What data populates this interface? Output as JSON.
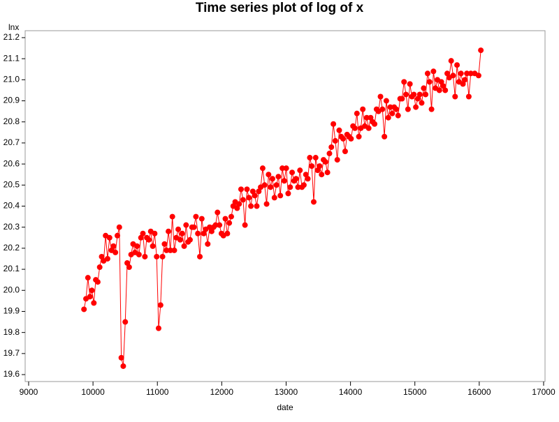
{
  "chart_data": {
    "type": "line",
    "title": "Time series plot of log  of x",
    "x_label": "date",
    "y_label": "lnx",
    "x": [
      9860,
      9891,
      9921,
      9952,
      9982,
      10013,
      10043,
      10074,
      10104,
      10135,
      10165,
      10196,
      10226,
      10257,
      10287,
      10318,
      10348,
      10379,
      10409,
      10440,
      10470,
      10501,
      10531,
      10562,
      10592,
      10623,
      10653,
      10684,
      10714,
      10745,
      10775,
      10806,
      10836,
      10867,
      10897,
      10928,
      10958,
      10989,
      11019,
      11050,
      11080,
      11111,
      11141,
      11172,
      11202,
      11233,
      11263,
      11294,
      11324,
      11355,
      11385,
      11416,
      11446,
      11477,
      11507,
      11538,
      11568,
      11599,
      11629,
      11660,
      11690,
      11721,
      11751,
      11782,
      11812,
      11843,
      11873,
      11904,
      11934,
      11965,
      11995,
      12026,
      12056,
      12087,
      12117,
      12148,
      12178,
      12209,
      12239,
      12270,
      12300,
      12331,
      12361,
      12392,
      12422,
      12453,
      12483,
      12514,
      12544,
      12575,
      12605,
      12636,
      12666,
      12697,
      12727,
      12758,
      12788,
      12819,
      12849,
      12880,
      12910,
      12941,
      12971,
      13002,
      13032,
      13063,
      13093,
      13124,
      13154,
      13185,
      13215,
      13246,
      13276,
      13307,
      13337,
      13368,
      13398,
      13429,
      13459,
      13490,
      13520,
      13551,
      13581,
      13612,
      13642,
      13673,
      13703,
      13734,
      13764,
      13795,
      13825,
      13856,
      13886,
      13917,
      13947,
      13978,
      14008,
      14039,
      14069,
      14100,
      14130,
      14161,
      14191,
      14222,
      14252,
      14283,
      14313,
      14344,
      14374,
      14405,
      14435,
      14466,
      14496,
      14527,
      14557,
      14588,
      14618,
      14649,
      14679,
      14710,
      14740,
      14771,
      14801,
      14832,
      14862,
      14893,
      14923,
      14954,
      14984,
      15015,
      15045,
      15076,
      15106,
      15137,
      15167,
      15198,
      15228,
      15259,
      15289,
      15320,
      15350,
      15381,
      15411,
      15442,
      15472,
      15503,
      15533,
      15564,
      15594,
      15625,
      15655,
      15686,
      15716,
      15747,
      15777,
      15808,
      15838,
      15869,
      15930,
      15990,
      16025
    ],
    "values": [
      19.91,
      19.96,
      20.06,
      19.97,
      20.0,
      19.94,
      20.05,
      20.04,
      20.11,
      20.16,
      20.14,
      20.26,
      20.15,
      20.25,
      20.19,
      20.21,
      20.18,
      20.26,
      20.3,
      19.68,
      19.64,
      19.85,
      20.13,
      20.11,
      20.17,
      20.22,
      20.18,
      20.21,
      20.17,
      20.25,
      20.27,
      20.16,
      20.25,
      20.24,
      20.28,
      20.21,
      20.27,
      20.16,
      19.82,
      19.93,
      20.16,
      20.22,
      20.19,
      20.28,
      20.19,
      20.35,
      20.19,
      20.25,
      20.29,
      20.24,
      20.27,
      20.21,
      20.31,
      20.23,
      20.24,
      20.3,
      20.3,
      20.35,
      20.27,
      20.16,
      20.34,
      20.27,
      20.29,
      20.22,
      20.3,
      20.28,
      20.3,
      20.31,
      20.37,
      20.31,
      20.27,
      20.26,
      20.34,
      20.27,
      20.32,
      20.35,
      20.4,
      20.42,
      20.39,
      20.41,
      20.48,
      20.43,
      20.31,
      20.48,
      20.44,
      20.4,
      20.47,
      20.45,
      20.4,
      20.47,
      20.49,
      20.58,
      20.5,
      20.41,
      20.55,
      20.49,
      20.53,
      20.44,
      20.5,
      20.54,
      20.45,
      20.58,
      20.52,
      20.58,
      20.46,
      20.49,
      20.56,
      20.52,
      20.53,
      20.49,
      20.57,
      20.49,
      20.5,
      20.55,
      20.53,
      20.63,
      20.59,
      20.42,
      20.63,
      20.57,
      20.59,
      20.55,
      20.62,
      20.61,
      20.56,
      20.65,
      20.68,
      20.79,
      20.71,
      20.62,
      20.76,
      20.73,
      20.72,
      20.66,
      20.74,
      20.73,
      20.72,
      20.78,
      20.77,
      20.84,
      20.73,
      20.77,
      20.86,
      20.78,
      20.82,
      20.77,
      20.82,
      20.8,
      20.79,
      20.86,
      20.85,
      20.92,
      20.86,
      20.73,
      20.9,
      20.82,
      20.87,
      20.84,
      20.87,
      20.86,
      20.83,
      20.91,
      20.91,
      20.99,
      20.93,
      20.86,
      20.98,
      20.92,
      20.93,
      20.87,
      20.91,
      20.93,
      20.89,
      20.96,
      20.93,
      21.03,
      20.99,
      20.86,
      21.04,
      20.96,
      21.0,
      20.95,
      20.99,
      20.97,
      20.95,
      21.03,
      21.01,
      21.09,
      21.02,
      20.92,
      21.07,
      20.99,
      21.03,
      20.98,
      21.0,
      21.03,
      20.92,
      21.03,
      21.03,
      21.02,
      21.14
    ],
    "color": "#ff0000",
    "xlim": [
      8946,
      17022
    ],
    "xticks": [
      9000,
      10000,
      11000,
      12000,
      13000,
      14000,
      15000,
      16000,
      17000
    ],
    "ylim": [
      19.567,
      21.233
    ],
    "yticks": [
      19.6,
      19.7,
      19.8,
      19.9,
      {
        "value": 20,
        "label": "20.0"
      },
      20.1,
      20.2,
      20.3,
      20.4,
      20.5,
      20.6,
      20.7,
      20.8,
      20.9,
      {
        "value": 21,
        "label": "21.0"
      },
      21.1,
      21.2
    ]
  }
}
